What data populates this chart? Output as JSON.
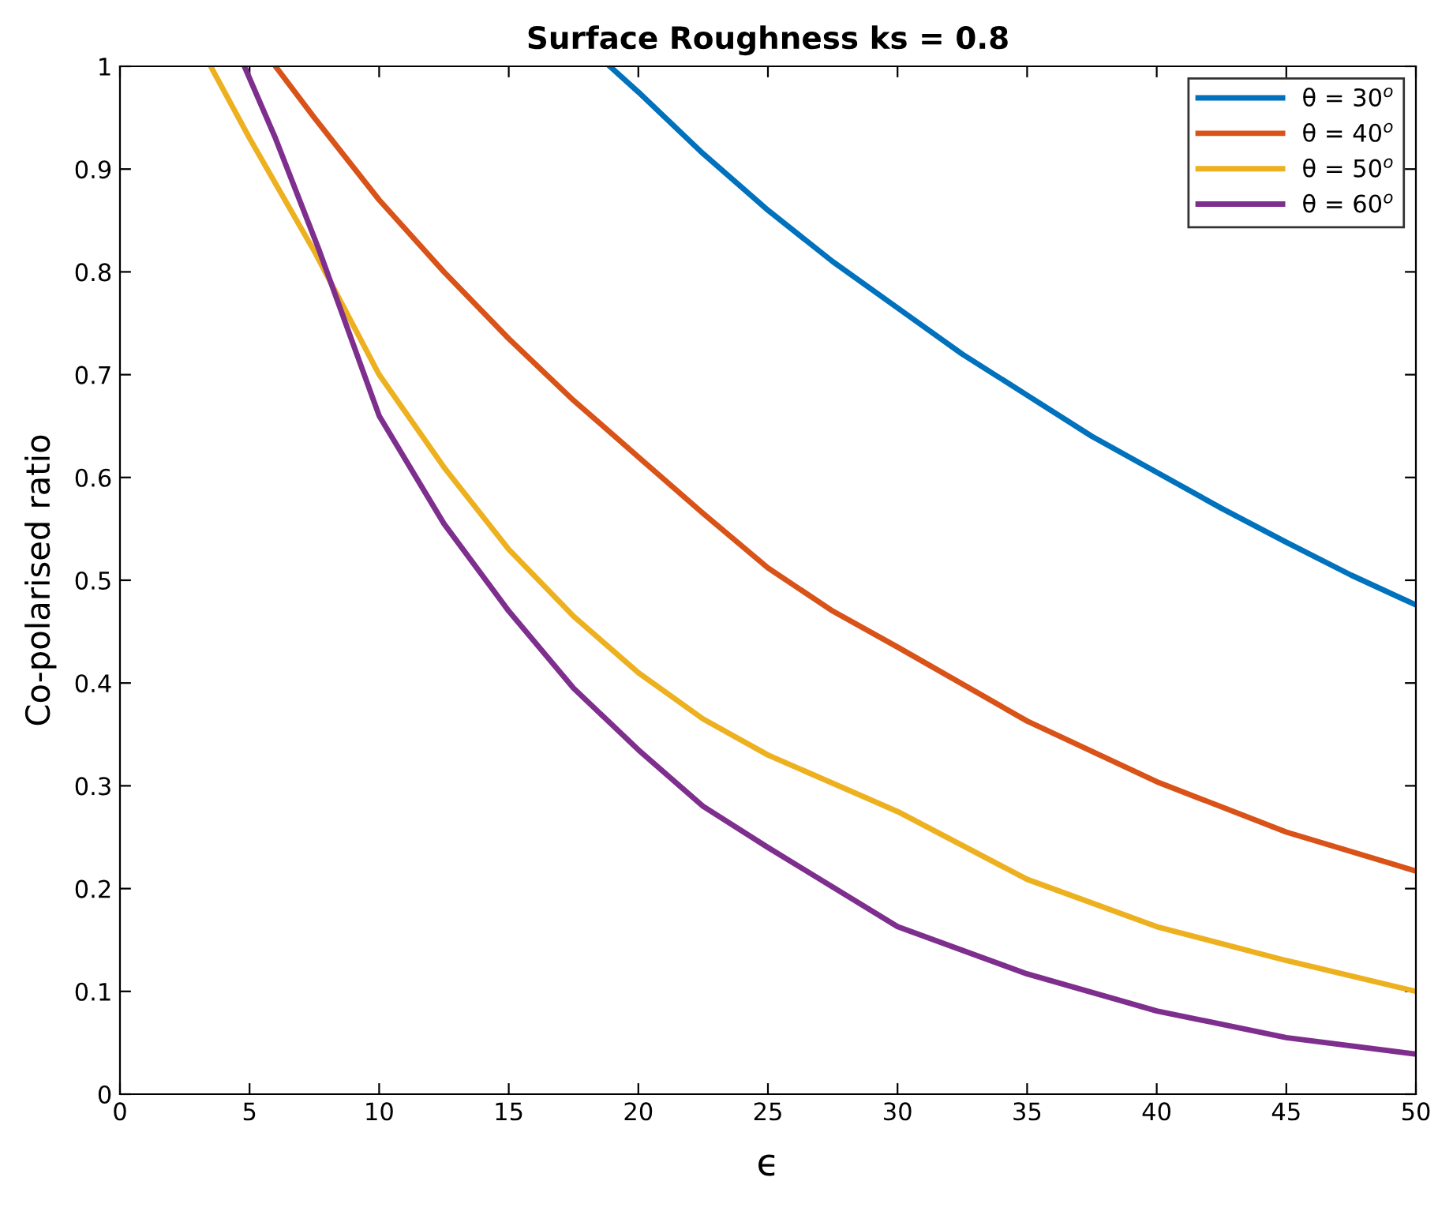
{
  "chart_data": {
    "type": "line",
    "title": "Surface Roughness ks = 0.8",
    "xlabel": "ϵ",
    "ylabel": "Co-polarised ratio",
    "xlim": [
      0,
      50
    ],
    "ylim": [
      0,
      1
    ],
    "xticks": [
      0,
      5,
      10,
      15,
      20,
      25,
      30,
      35,
      40,
      45,
      50
    ],
    "yticks": [
      0,
      0.1,
      0.2,
      0.3,
      0.4,
      0.5,
      0.6,
      0.7,
      0.8,
      0.9,
      1
    ],
    "grid": false,
    "legend": "top right",
    "marker": "none",
    "line_style": "solid",
    "series": [
      {
        "name": "θ = 30$^{o}$",
        "color": "#0072bd",
        "x": [
          18.9,
          20,
          22.5,
          25,
          27.5,
          30,
          32.5,
          35,
          37.5,
          40,
          42.5,
          45,
          47.5,
          50
        ],
        "values": [
          1.0,
          0.975,
          0.915,
          0.86,
          0.81,
          0.765,
          0.72,
          0.68,
          0.64,
          0.605,
          0.57,
          0.537,
          0.505,
          0.476
        ]
      },
      {
        "name": "θ = 40$^{o}$",
        "color": "#d95319",
        "x": [
          6,
          7.5,
          10,
          12.5,
          15,
          17.5,
          20,
          22.5,
          25,
          27.5,
          30,
          35,
          40,
          45,
          50
        ],
        "values": [
          1.0,
          0.95,
          0.87,
          0.8,
          0.735,
          0.675,
          0.62,
          0.565,
          0.512,
          0.47,
          0.435,
          0.363,
          0.304,
          0.255,
          0.217
        ]
      },
      {
        "name": "θ = 50$^{o}$",
        "color": "#edb120",
        "x": [
          3.5,
          5,
          7.5,
          10,
          12.5,
          15,
          17.5,
          20,
          22.5,
          25,
          30,
          35,
          40,
          45,
          50
        ],
        "values": [
          1.0,
          0.93,
          0.82,
          0.7,
          0.61,
          0.53,
          0.465,
          0.41,
          0.365,
          0.33,
          0.275,
          0.209,
          0.163,
          0.13,
          0.1
        ]
      },
      {
        "name": "θ = 60$^{o}$",
        "color": "#7e2f8e",
        "x": [
          4.8,
          6,
          7.7,
          10,
          12.5,
          15,
          17.5,
          20,
          22.5,
          25,
          30,
          35,
          40,
          45,
          50
        ],
        "values": [
          1.0,
          0.93,
          0.82,
          0.66,
          0.555,
          0.47,
          0.395,
          0.335,
          0.28,
          0.24,
          0.163,
          0.117,
          0.081,
          0.055,
          0.039
        ]
      }
    ]
  }
}
